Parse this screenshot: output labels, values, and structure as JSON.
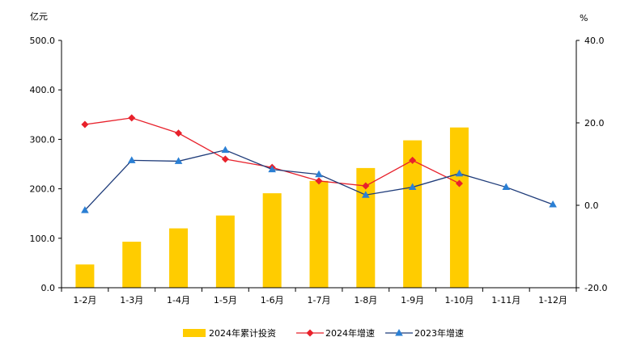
{
  "chart_data": {
    "type": "bar",
    "left_axis": {
      "unit_label": "亿元",
      "ylim": [
        0,
        500
      ],
      "ticks": [
        "0.0",
        "100.0",
        "200.0",
        "300.0",
        "400.0",
        "500.0"
      ]
    },
    "right_axis": {
      "unit_label": "%",
      "ylim": [
        -20,
        40
      ],
      "ticks": [
        "-20.0",
        "0.0",
        "20.0",
        "40.0"
      ]
    },
    "categories": [
      "1-2月",
      "1-3月",
      "1-4月",
      "1-5月",
      "1-6月",
      "1-7月",
      "1-8月",
      "1-9月",
      "1-10月",
      "1-11月",
      "1-12月"
    ],
    "series": [
      {
        "name": "2024年累计投资",
        "kind": "bar",
        "axis": "left",
        "color": "#FFCC00",
        "values": [
          47,
          93,
          120,
          146,
          191,
          216,
          242,
          298,
          324,
          null,
          null
        ]
      },
      {
        "name": "2024年增速",
        "kind": "line",
        "axis": "right",
        "color": "#E8212B",
        "marker": "diamond",
        "values": [
          19.6,
          21.2,
          17.5,
          11.2,
          9.2,
          5.9,
          4.7,
          10.9,
          5.3,
          null,
          null
        ]
      },
      {
        "name": "2023年增速",
        "kind": "line",
        "axis": "right",
        "color": "#1F3C7A",
        "marker_color": "#2A7FD4",
        "marker": "triangle",
        "values": [
          -1.2,
          10.9,
          10.7,
          13.4,
          8.7,
          7.5,
          2.5,
          4.4,
          7.7,
          4.4,
          0.2
        ]
      }
    ],
    "legend_position": "bottom",
    "grid": false
  }
}
